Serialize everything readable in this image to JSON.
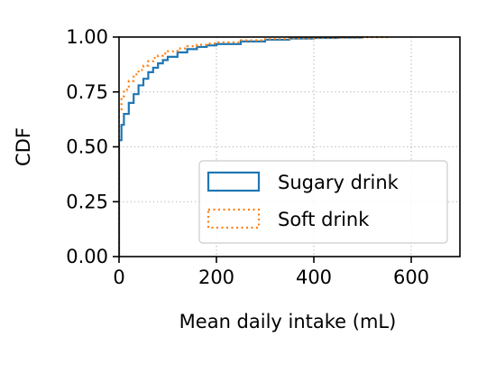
{
  "chart_data": {
    "type": "line",
    "title": "",
    "xlabel": "Mean daily intake (mL)",
    "ylabel": "CDF",
    "xlim": [
      0,
      700
    ],
    "ylim": [
      0,
      1
    ],
    "xticks": [
      0,
      200,
      400,
      600
    ],
    "yticks": [
      0,
      0.25,
      0.5,
      0.75,
      1
    ],
    "xtick_labels": [
      "0",
      "200",
      "400",
      "600"
    ],
    "ytick_labels": [
      "0.00",
      "0.25",
      "0.50",
      "0.75",
      "1.00"
    ],
    "grid": true,
    "legend_position": "lower right",
    "step": true,
    "series": [
      {
        "name": "Sugary drink",
        "color": "#1f77b4",
        "line_style": "solid",
        "x": [
          0,
          5,
          10,
          20,
          30,
          40,
          50,
          60,
          70,
          80,
          90,
          100,
          120,
          140,
          160,
          180,
          200,
          250,
          300,
          350,
          400,
          450,
          500
        ],
        "y": [
          0.53,
          0.6,
          0.65,
          0.7,
          0.74,
          0.78,
          0.81,
          0.84,
          0.86,
          0.88,
          0.895,
          0.91,
          0.93,
          0.945,
          0.955,
          0.962,
          0.968,
          0.98,
          0.988,
          0.993,
          0.996,
          0.998,
          1.0
        ]
      },
      {
        "name": "Soft drink",
        "color": "#ff7f0e",
        "line_style": "dotted",
        "x": [
          0,
          5,
          10,
          20,
          30,
          40,
          50,
          60,
          70,
          80,
          90,
          100,
          120,
          140,
          160,
          180,
          200,
          250,
          300,
          350,
          400,
          450,
          500,
          550
        ],
        "y": [
          0.67,
          0.73,
          0.76,
          0.8,
          0.83,
          0.85,
          0.87,
          0.89,
          0.905,
          0.915,
          0.925,
          0.935,
          0.948,
          0.958,
          0.965,
          0.971,
          0.976,
          0.985,
          0.991,
          0.995,
          0.997,
          0.999,
          0.9995,
          1.0
        ]
      }
    ]
  }
}
